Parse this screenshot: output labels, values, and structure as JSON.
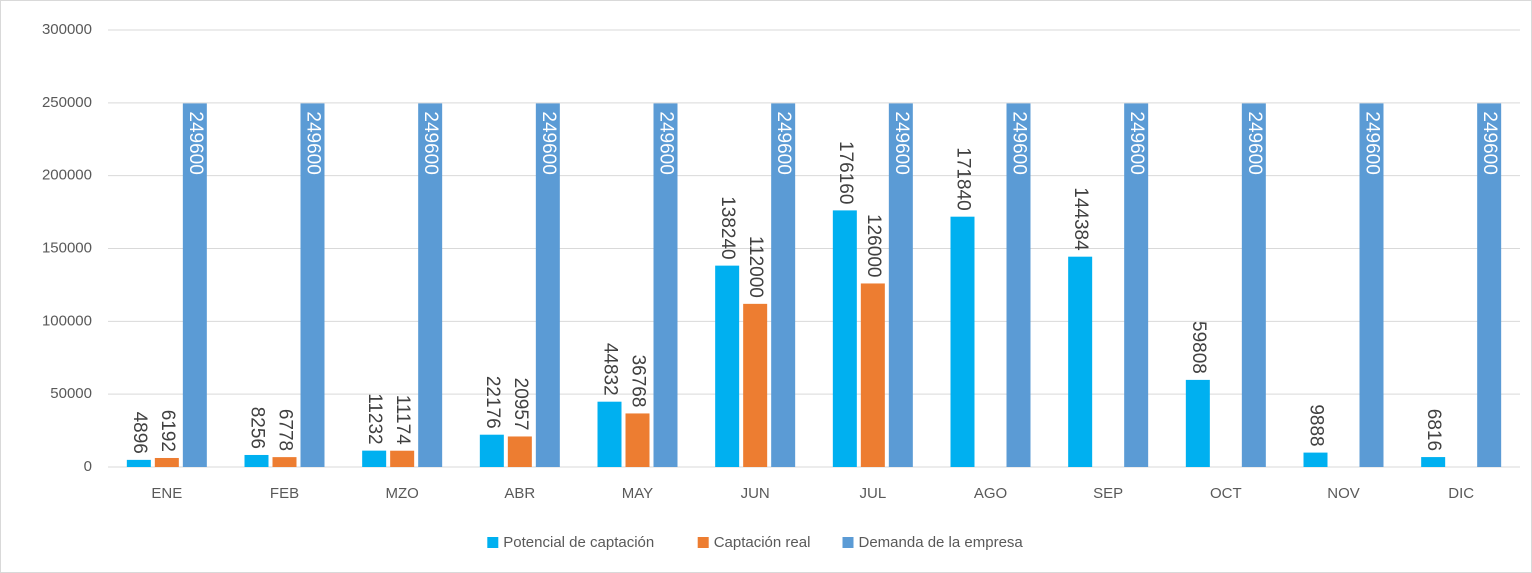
{
  "chart_data": {
    "type": "bar",
    "categories": [
      "ENE",
      "FEB",
      "MZO",
      "ABR",
      "MAY",
      "JUN",
      "JUL",
      "AGO",
      "SEP",
      "OCT",
      "NOV",
      "DIC"
    ],
    "series": [
      {
        "name": "Potencial de captación",
        "color": "#00b0f0",
        "values": [
          4896,
          8256,
          11232,
          22176,
          44832,
          138240,
          176160,
          171840,
          144384,
          59808,
          9888,
          6816
        ]
      },
      {
        "name": "Captación real",
        "color": "#ed7d31",
        "values": [
          6192,
          6778,
          11174,
          20957,
          36768,
          112000,
          126000,
          null,
          null,
          null,
          null,
          null
        ]
      },
      {
        "name": "Demanda de la empresa",
        "color": "#5b9bd5",
        "values": [
          249600,
          249600,
          249600,
          249600,
          249600,
          249600,
          249600,
          249600,
          249600,
          249600,
          249600,
          249600
        ]
      }
    ],
    "ylim": [
      0,
      300000
    ],
    "yticks": [
      0,
      50000,
      100000,
      150000,
      200000,
      250000,
      300000
    ],
    "grid": true,
    "legend": "bottom"
  }
}
